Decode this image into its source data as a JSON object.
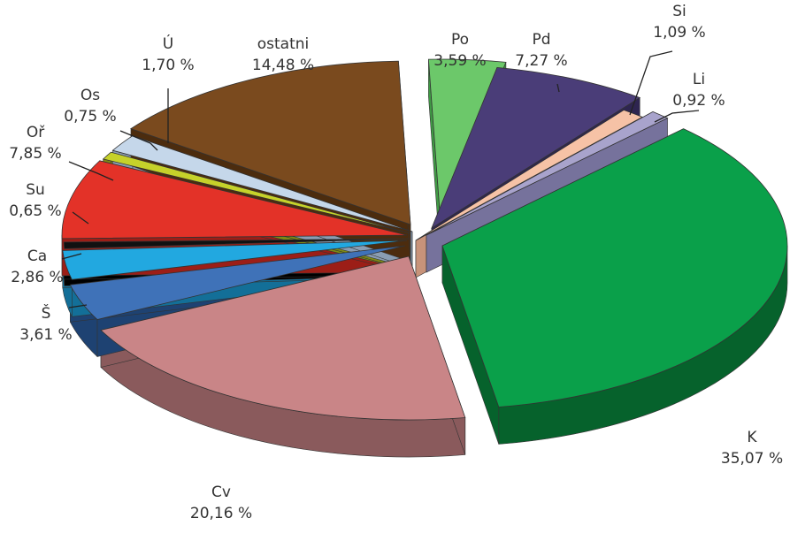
{
  "chart_data": {
    "type": "pie",
    "style": "3d-exploded",
    "title": "",
    "slices": [
      {
        "name": "Po",
        "value": 3.59,
        "value_label": "3,59 %",
        "color": "#6cc86a",
        "side_color": "#3f9a44"
      },
      {
        "name": "Pd",
        "value": 7.27,
        "value_label": "7,27 %",
        "color": "#4a3d78",
        "side_color": "#2e2550"
      },
      {
        "name": "Si",
        "value": 1.09,
        "value_label": "1,09 %",
        "color": "#f6c2a6",
        "side_color": "#c8937a"
      },
      {
        "name": "Li",
        "value": 0.92,
        "value_label": "0,92 %",
        "color": "#a8a3cc",
        "side_color": "#76729c"
      },
      {
        "name": "K",
        "value": 35.07,
        "value_label": "35,07 %",
        "color": "#0aa04a",
        "side_color": "#06622c"
      },
      {
        "name": "Cv",
        "value": 20.16,
        "value_label": "20,16 %",
        "color": "#c98587",
        "side_color": "#8a5a5c"
      },
      {
        "name": "Š",
        "value": 3.61,
        "value_label": "3,61 %",
        "color": "#3f72b8",
        "side_color": "#1e4272"
      },
      {
        "name": "Ca",
        "value": 2.86,
        "value_label": "2,86 %",
        "color": "#22a8e0",
        "side_color": "#136f98"
      },
      {
        "name": "Su",
        "value": 0.65,
        "value_label": "0,65 %",
        "color": "#111111",
        "side_color": "#000000"
      },
      {
        "name": "Oř",
        "value": 7.85,
        "value_label": "7,85 %",
        "color": "#e33228",
        "side_color": "#9c1e17"
      },
      {
        "name": "Os",
        "value": 0.75,
        "value_label": "0,75 %",
        "color": "#c6d22a",
        "side_color": "#7e8a14"
      },
      {
        "name": "Ú",
        "value": 1.7,
        "value_label": "1,70 %",
        "color": "#c5d7ea",
        "side_color": "#8a9db2"
      },
      {
        "name": "ostatni",
        "value": 14.48,
        "value_label": "14,48 %",
        "color": "#7a4a1e",
        "side_color": "#4c2c0e"
      }
    ]
  }
}
